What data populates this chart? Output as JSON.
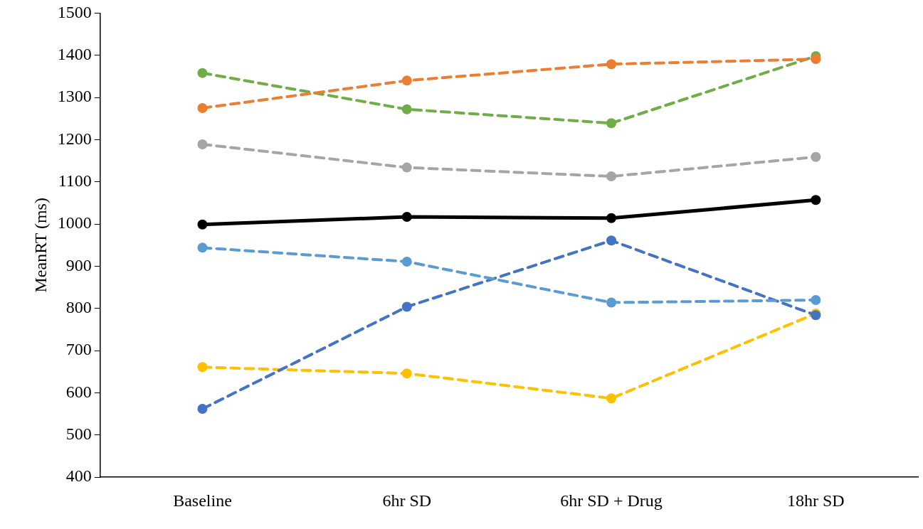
{
  "chart_data": {
    "type": "line",
    "ylabel": "MeanRT (ms)",
    "categories": [
      "Baseline",
      "6hr SD",
      "6hr SD + Drug",
      "18hr SD"
    ],
    "ylim": [
      400,
      1500
    ],
    "yticks": [
      400,
      500,
      600,
      700,
      800,
      900,
      1000,
      1100,
      1200,
      1300,
      1400,
      1500
    ],
    "grid": false,
    "legend": false,
    "marker": "circle",
    "series": [
      {
        "color": "#ed7d31",
        "line_style": "dashed",
        "values": [
          1275,
          1340,
          1379,
          1391
        ]
      },
      {
        "color": "#70ad47",
        "line_style": "dashed",
        "values": [
          1358,
          1272,
          1239,
          1398
        ]
      },
      {
        "color": "#a5a5a5",
        "line_style": "dashed",
        "values": [
          1189,
          1134,
          1113,
          1159
        ]
      },
      {
        "color": "#000000",
        "line_style": "solid",
        "values": [
          999,
          1017,
          1014,
          1057
        ]
      },
      {
        "color": "#5b9bd5",
        "line_style": "dashed",
        "values": [
          944,
          911,
          814,
          820
        ]
      },
      {
        "color": "#4472c4",
        "line_style": "dashed",
        "values": [
          562,
          804,
          961,
          784
        ]
      },
      {
        "color": "#ffc000",
        "line_style": "dashed",
        "values": [
          661,
          646,
          587,
          788
        ]
      }
    ]
  }
}
